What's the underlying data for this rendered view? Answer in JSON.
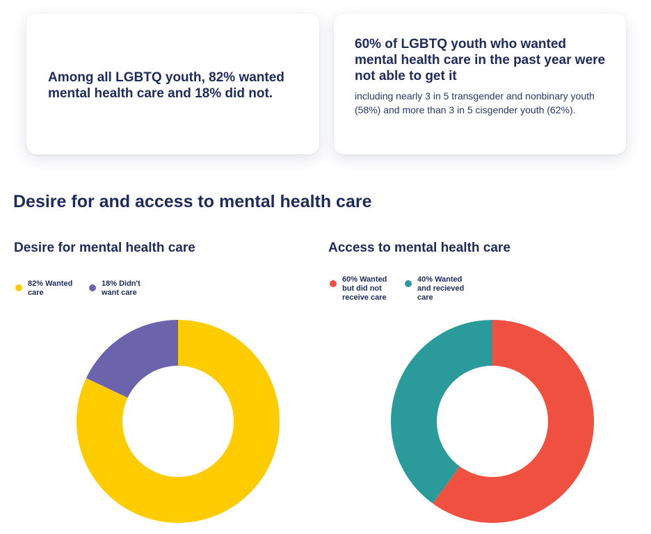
{
  "cards": {
    "left": {
      "stat": "Among all LGBTQ youth, 82% wanted mental health care and 18% did not."
    },
    "right": {
      "stat": "60% of LGBTQ youth who wanted mental health care in the past year were not able to get it",
      "detail": "including nearly 3 in 5 transgender and nonbinary youth (58%) and more than 3 in 5 cisgender youth (62%)."
    }
  },
  "section_title": "Desire for and access to mental health care",
  "chart_data": [
    {
      "type": "pie",
      "variant": "donut",
      "title": "Desire for mental health care",
      "legend_position": "top-left",
      "categories": [
        "82% Wanted care",
        "18% Didn't want care"
      ],
      "values": [
        82,
        18
      ],
      "colors": [
        "#ffcc00",
        "#6b63ab"
      ]
    },
    {
      "type": "pie",
      "variant": "donut",
      "title": "Access to mental health care",
      "legend_position": "top-left",
      "categories": [
        "60% Wanted but did not receive care",
        "40% Wanted and recieved care"
      ],
      "values": [
        60,
        40
      ],
      "colors": [
        "#f0503f",
        "#2a9a9a"
      ]
    }
  ]
}
